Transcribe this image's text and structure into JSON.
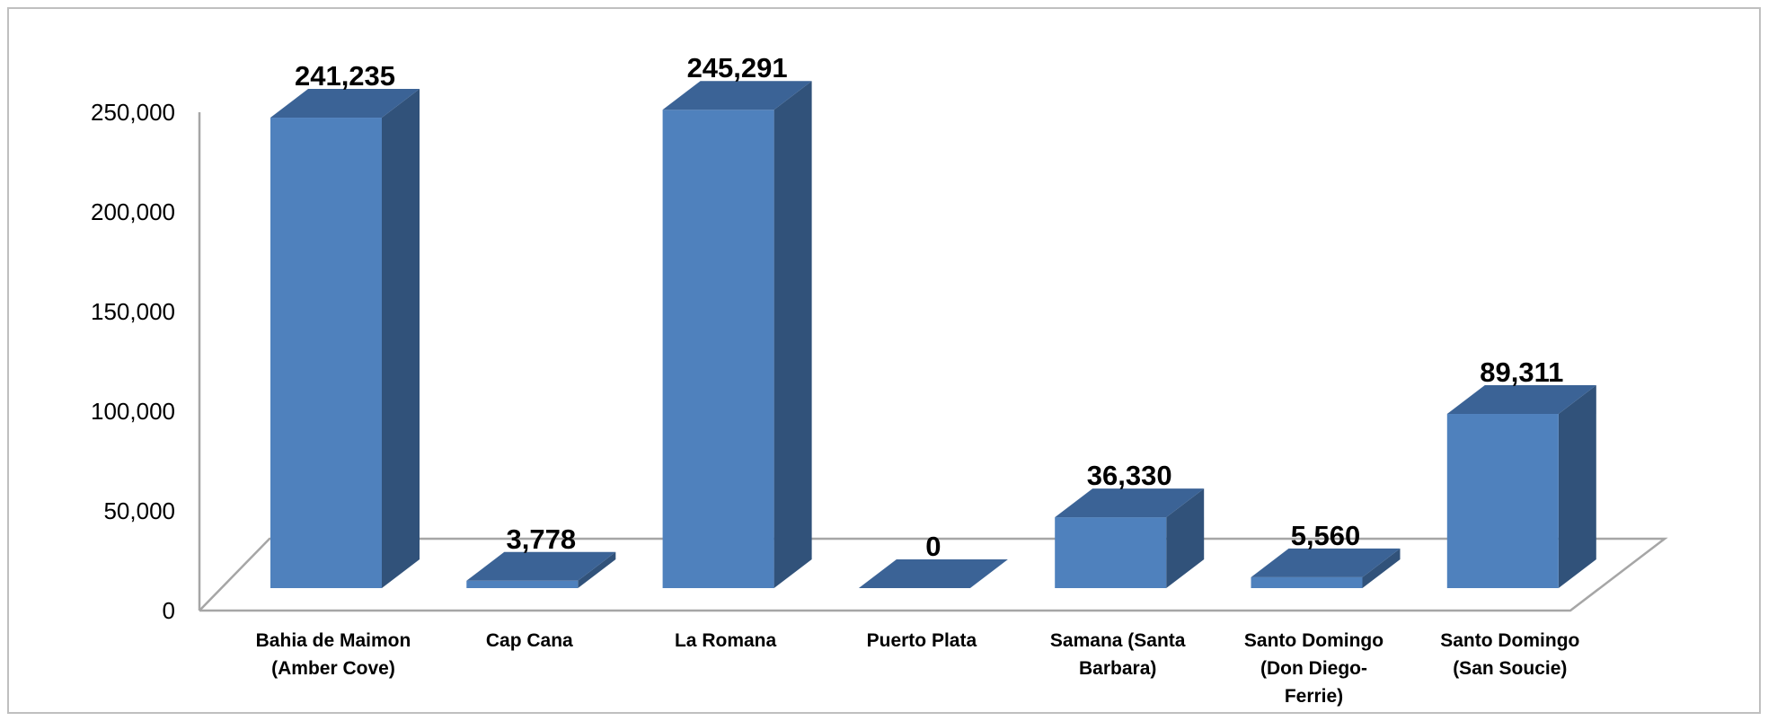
{
  "chart_data": {
    "type": "bar",
    "style": "3d-column",
    "categories": [
      [
        "Bahia de Maimon",
        "(Amber Cove)"
      ],
      [
        "Cap Cana"
      ],
      [
        "La Romana"
      ],
      [
        "Puerto Plata"
      ],
      [
        "Samana (Santa",
        "Barbara)"
      ],
      [
        "Santo Domingo",
        "(Don Diego-",
        "Ferrie)"
      ],
      [
        "Santo Domingo",
        "(San Soucie)"
      ]
    ],
    "values": [
      241235,
      3778,
      245291,
      0,
      36330,
      5560,
      89311
    ],
    "data_labels": [
      "241,235",
      "3,778",
      "245,291",
      "0",
      "36,330",
      "5,560",
      "89,311"
    ],
    "ylim": [
      0,
      250000
    ],
    "yticks": [
      0,
      50000,
      100000,
      150000,
      200000,
      250000
    ],
    "ytick_labels": [
      "0",
      "50,000",
      "100,000",
      "150,000",
      "200,000",
      "250,000"
    ],
    "title": "",
    "xlabel": "",
    "ylabel": "",
    "grid": false,
    "legend": "none",
    "colors": {
      "bar_front": "#4F81BD",
      "bar_side": "#31527A",
      "bar_top": "#3B6396",
      "axis": "#A6A6A6",
      "frame": "#BFBFBF"
    }
  }
}
